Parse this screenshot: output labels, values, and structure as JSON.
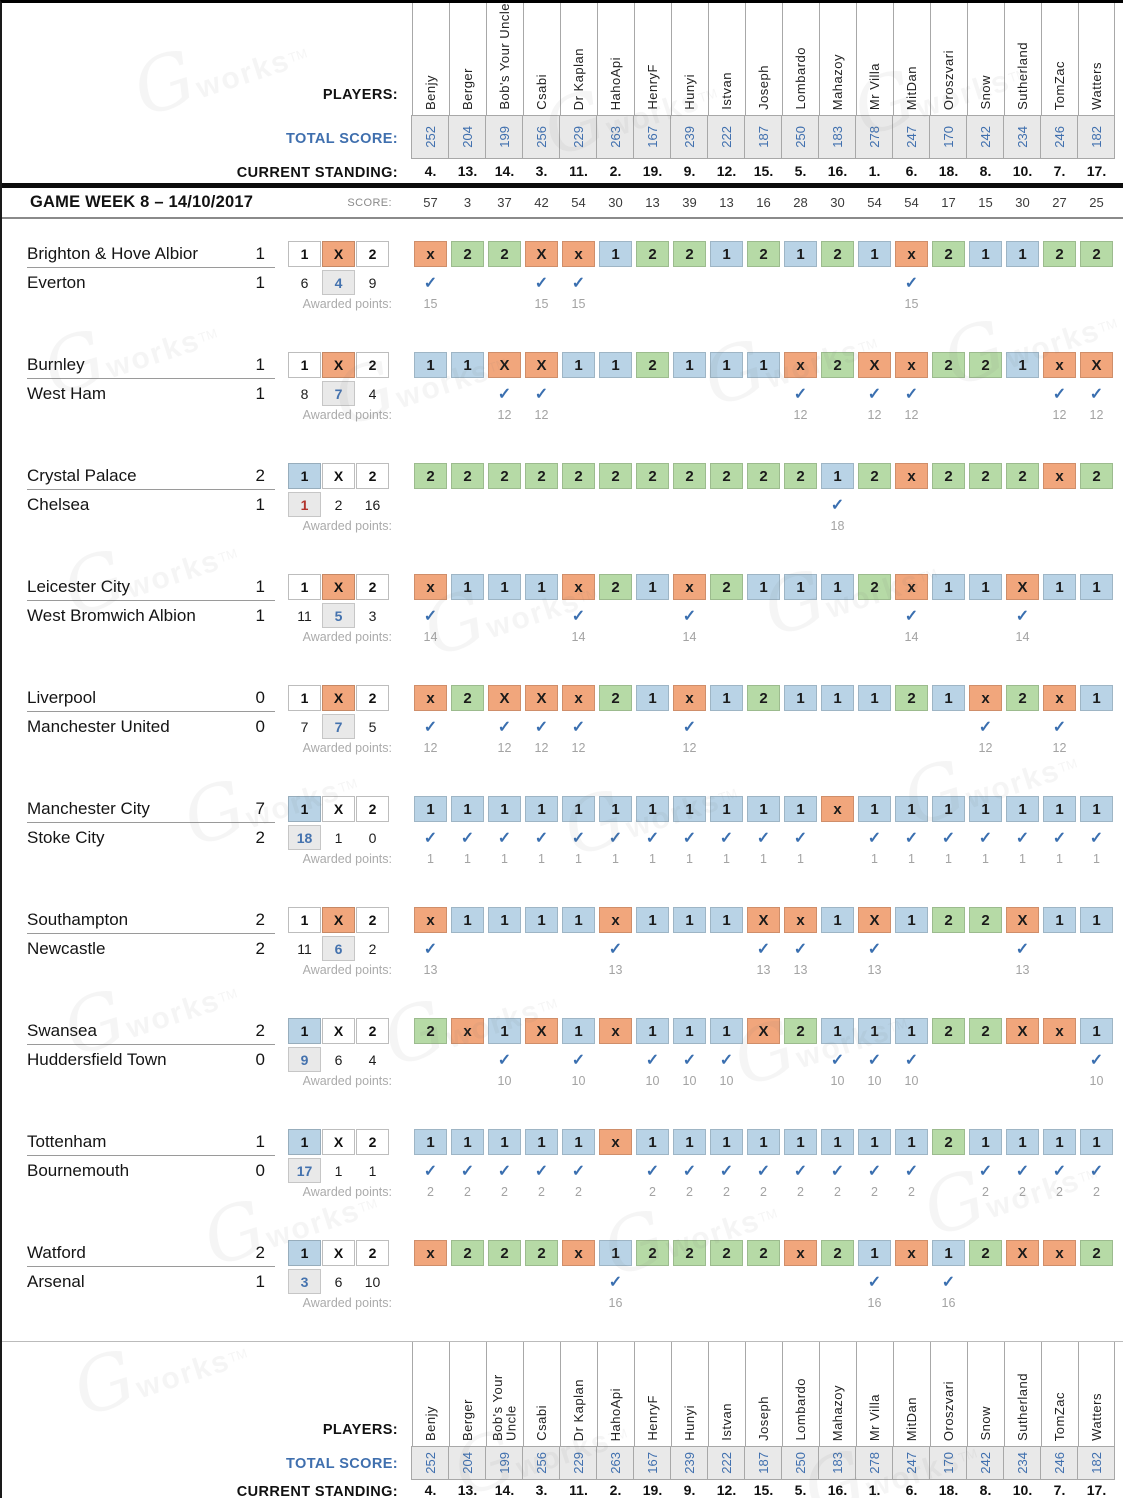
{
  "labels": {
    "players": "PLAYERS:",
    "total_score": "TOTAL SCORE:",
    "current_standing": "CURRENT STANDING:"
  },
  "gameweek": {
    "title": "GAME WEEK 8 – 14/10/2017",
    "score_label": "SCORE:",
    "awarded_label": "Awarded points:"
  },
  "colors": {
    "home_win_1": "#b9d3e6",
    "away_win_2": "#b6daa6",
    "draw_x": "#f1a67c",
    "check": "#3a6fb0",
    "odds_highlight_blue": "#4472ae",
    "odds_highlight_red": "#b2342c",
    "total_score_text": "#3f6fae"
  },
  "players": [
    {
      "name": "Benjy",
      "total": "252",
      "standing": "4.",
      "week_score": "57"
    },
    {
      "name": "Berger",
      "total": "204",
      "standing": "13.",
      "week_score": "3"
    },
    {
      "name": "Bob's Your Uncle",
      "total": "199",
      "standing": "14.",
      "week_score": "37"
    },
    {
      "name": "Csabi",
      "total": "256",
      "standing": "3.",
      "week_score": "42"
    },
    {
      "name": "Dr Kaplan",
      "total": "229",
      "standing": "11.",
      "week_score": "54"
    },
    {
      "name": "HahoApi",
      "total": "263",
      "standing": "2.",
      "week_score": "30"
    },
    {
      "name": "HenryF",
      "total": "167",
      "standing": "19.",
      "week_score": "13"
    },
    {
      "name": "Hunyi",
      "total": "239",
      "standing": "9.",
      "week_score": "39"
    },
    {
      "name": "Istvan",
      "total": "222",
      "standing": "12.",
      "week_score": "13"
    },
    {
      "name": "Joseph",
      "total": "187",
      "standing": "15.",
      "week_score": "16"
    },
    {
      "name": "Lombardo",
      "total": "250",
      "standing": "5.",
      "week_score": "28"
    },
    {
      "name": "Mahazoy",
      "total": "183",
      "standing": "16.",
      "week_score": "30"
    },
    {
      "name": "Mr Villa",
      "total": "278",
      "standing": "1.",
      "week_score": "54"
    },
    {
      "name": "MitDan",
      "total": "247",
      "standing": "6.",
      "week_score": "54"
    },
    {
      "name": "Oroszvari",
      "total": "170",
      "standing": "18.",
      "week_score": "17"
    },
    {
      "name": "Snow",
      "total": "242",
      "standing": "8.",
      "week_score": "15"
    },
    {
      "name": "Sutherland",
      "total": "234",
      "standing": "10.",
      "week_score": "30"
    },
    {
      "name": "TomZac",
      "total": "246",
      "standing": "7.",
      "week_score": "27"
    },
    {
      "name": "Watters",
      "total": "182",
      "standing": "17.",
      "week_score": "25"
    }
  ],
  "matches": [
    {
      "home": "Brighton & Hove Albior",
      "home_score": "1",
      "away": "Everton",
      "away_score": "1",
      "odds": {
        "1": "6",
        "X": "4",
        "2": "9"
      },
      "result": "X",
      "winning_odds_color": "blue",
      "predictions": [
        "x",
        "2",
        "2",
        "X",
        "x",
        "1",
        "2",
        "2",
        "1",
        "2",
        "1",
        "2",
        "1",
        "x",
        "2",
        "1",
        "1",
        "2",
        "2"
      ],
      "points": [
        15,
        null,
        null,
        15,
        15,
        null,
        null,
        null,
        null,
        null,
        null,
        null,
        null,
        15,
        null,
        null,
        null,
        null,
        null
      ]
    },
    {
      "home": "Burnley",
      "home_score": "1",
      "away": "West Ham",
      "away_score": "1",
      "odds": {
        "1": "8",
        "X": "7",
        "2": "4"
      },
      "result": "X",
      "winning_odds_color": "blue",
      "predictions": [
        "1",
        "1",
        "X",
        "X",
        "1",
        "1",
        "2",
        "1",
        "1",
        "1",
        "x",
        "2",
        "X",
        "x",
        "2",
        "2",
        "1",
        "x",
        "X"
      ],
      "points": [
        null,
        null,
        12,
        12,
        null,
        null,
        null,
        null,
        null,
        null,
        12,
        null,
        12,
        12,
        null,
        null,
        null,
        12,
        12
      ]
    },
    {
      "home": "Crystal Palace",
      "home_score": "2",
      "away": "Chelsea",
      "away_score": "1",
      "odds": {
        "1": "1",
        "X": "2",
        "2": "16"
      },
      "result": "1",
      "winning_odds_color": "red",
      "predictions": [
        "2",
        "2",
        "2",
        "2",
        "2",
        "2",
        "2",
        "2",
        "2",
        "2",
        "2",
        "1",
        "2",
        "x",
        "2",
        "2",
        "2",
        "x",
        "2"
      ],
      "points": [
        null,
        null,
        null,
        null,
        null,
        null,
        null,
        null,
        null,
        null,
        null,
        18,
        null,
        null,
        null,
        null,
        null,
        null,
        null
      ]
    },
    {
      "home": "Leicester City",
      "home_score": "1",
      "away": "West Bromwich Albion",
      "away_score": "1",
      "odds": {
        "1": "11",
        "X": "5",
        "2": "3"
      },
      "result": "X",
      "winning_odds_color": "blue",
      "predictions": [
        "x",
        "1",
        "1",
        "1",
        "x",
        "2",
        "1",
        "x",
        "2",
        "1",
        "1",
        "1",
        "2",
        "x",
        "1",
        "1",
        "X",
        "1",
        "1"
      ],
      "points": [
        14,
        null,
        null,
        null,
        14,
        null,
        null,
        14,
        null,
        null,
        null,
        null,
        null,
        14,
        null,
        null,
        14,
        null,
        null
      ]
    },
    {
      "home": "Liverpool",
      "home_score": "0",
      "away": "Manchester United",
      "away_score": "0",
      "odds": {
        "1": "7",
        "X": "7",
        "2": "5"
      },
      "result": "X",
      "winning_odds_color": "blue",
      "predictions": [
        "x",
        "2",
        "X",
        "X",
        "x",
        "2",
        "1",
        "x",
        "1",
        "2",
        "1",
        "1",
        "1",
        "2",
        "1",
        "x",
        "2",
        "x",
        "1"
      ],
      "points": [
        12,
        null,
        12,
        12,
        12,
        null,
        null,
        12,
        null,
        null,
        null,
        null,
        null,
        null,
        null,
        12,
        null,
        12,
        null
      ]
    },
    {
      "home": "Manchester City",
      "home_score": "7",
      "away": "Stoke City",
      "away_score": "2",
      "odds": {
        "1": "18",
        "X": "1",
        "2": "0"
      },
      "result": "1",
      "winning_odds_color": "blue",
      "predictions": [
        "1",
        "1",
        "1",
        "1",
        "1",
        "1",
        "1",
        "1",
        "1",
        "1",
        "1",
        "x",
        "1",
        "1",
        "1",
        "1",
        "1",
        "1",
        "1"
      ],
      "points": [
        1,
        1,
        1,
        1,
        1,
        1,
        1,
        1,
        1,
        1,
        1,
        null,
        1,
        1,
        1,
        1,
        1,
        1,
        1
      ]
    },
    {
      "home": "Southampton",
      "home_score": "2",
      "away": "Newcastle",
      "away_score": "2",
      "odds": {
        "1": "11",
        "X": "6",
        "2": "2"
      },
      "result": "X",
      "winning_odds_color": "blue",
      "predictions": [
        "x",
        "1",
        "1",
        "1",
        "1",
        "x",
        "1",
        "1",
        "1",
        "X",
        "x",
        "1",
        "X",
        "1",
        "2",
        "2",
        "X",
        "1",
        "1"
      ],
      "points": [
        13,
        null,
        null,
        null,
        null,
        13,
        null,
        null,
        null,
        13,
        13,
        null,
        13,
        null,
        null,
        null,
        13,
        null,
        null
      ]
    },
    {
      "home": "Swansea",
      "home_score": "2",
      "away": "Huddersfield Town",
      "away_score": "0",
      "odds": {
        "1": "9",
        "X": "6",
        "2": "4"
      },
      "result": "1",
      "winning_odds_color": "blue",
      "predictions": [
        "2",
        "x",
        "1",
        "X",
        "1",
        "x",
        "1",
        "1",
        "1",
        "X",
        "2",
        "1",
        "1",
        "1",
        "2",
        "2",
        "X",
        "x",
        "1"
      ],
      "points": [
        null,
        null,
        10,
        null,
        10,
        null,
        10,
        10,
        10,
        null,
        null,
        10,
        10,
        10,
        null,
        null,
        null,
        null,
        10
      ]
    },
    {
      "home": "Tottenham",
      "home_score": "1",
      "away": "Bournemouth",
      "away_score": "0",
      "odds": {
        "1": "17",
        "X": "1",
        "2": "1"
      },
      "result": "1",
      "winning_odds_color": "blue",
      "predictions": [
        "1",
        "1",
        "1",
        "1",
        "1",
        "x",
        "1",
        "1",
        "1",
        "1",
        "1",
        "1",
        "1",
        "1",
        "2",
        "1",
        "1",
        "1",
        "1"
      ],
      "points": [
        2,
        2,
        2,
        2,
        2,
        null,
        2,
        2,
        2,
        2,
        2,
        2,
        2,
        2,
        null,
        2,
        2,
        2,
        2
      ]
    },
    {
      "home": "Watford",
      "home_score": "2",
      "away": "Arsenal",
      "away_score": "1",
      "odds": {
        "1": "3",
        "X": "6",
        "2": "10"
      },
      "result": "1",
      "winning_odds_color": "blue",
      "predictions": [
        "x",
        "2",
        "2",
        "2",
        "x",
        "1",
        "2",
        "2",
        "2",
        "2",
        "x",
        "2",
        "1",
        "x",
        "1",
        "2",
        "X",
        "x",
        "2"
      ],
      "points": [
        null,
        null,
        null,
        null,
        null,
        16,
        null,
        null,
        null,
        null,
        null,
        null,
        16,
        null,
        16,
        null,
        null,
        null,
        null
      ]
    }
  ]
}
